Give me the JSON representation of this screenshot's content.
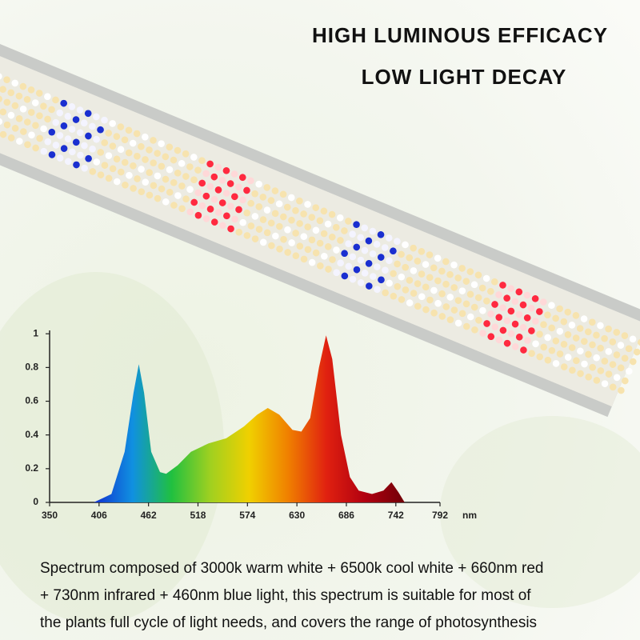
{
  "headline": [
    "HIGH LUMINOUS EFFICACY",
    "LOW LIGHT DECAY"
  ],
  "description": [
    "Spectrum composed of 3000k warm white + 6500k cool white + 660nm red",
    "+ 730nm infrared + 460nm blue light, this spectrum is suitable for most of",
    "the plants full cycle of light needs, and covers the range of photosynthesis"
  ],
  "chart_data": {
    "type": "area",
    "xlabel": "nm",
    "x": [
      400,
      420,
      435,
      445,
      451,
      457,
      465,
      475,
      482,
      495,
      510,
      530,
      550,
      570,
      585,
      597,
      610,
      625,
      635,
      645,
      655,
      663,
      670,
      680,
      690,
      700,
      715,
      728,
      737,
      745,
      752
    ],
    "values": [
      0,
      0.05,
      0.3,
      0.65,
      0.82,
      0.65,
      0.3,
      0.18,
      0.17,
      0.22,
      0.3,
      0.35,
      0.38,
      0.45,
      0.52,
      0.56,
      0.52,
      0.43,
      0.42,
      0.5,
      0.8,
      0.99,
      0.85,
      0.4,
      0.15,
      0.07,
      0.05,
      0.07,
      0.12,
      0.06,
      0
    ],
    "gradient": [
      "#1030d0",
      "#1090e0",
      "#20c040",
      "#a0d020",
      "#f0d000",
      "#f08000",
      "#e02010",
      "#b00010",
      "#700008"
    ],
    "xlim": [
      350,
      792
    ],
    "xticks": [
      350,
      406,
      462,
      518,
      574,
      630,
      686,
      742,
      792
    ],
    "ylim": [
      0,
      1.02
    ],
    "yticks": [
      0,
      0.2,
      0.4,
      0.6,
      0.8,
      1
    ]
  }
}
